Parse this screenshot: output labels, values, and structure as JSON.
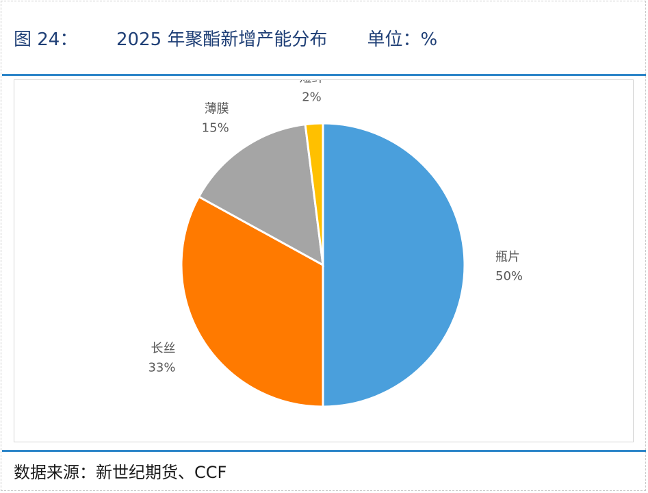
{
  "figure": {
    "number": "图 24：",
    "title": "2025 年聚酯新增产能分布",
    "unit": "单位：%",
    "source": "数据来源：新世纪期货、CCF"
  },
  "chart_data": {
    "type": "pie",
    "title": "",
    "categories": [
      "瓶片",
      "长丝",
      "薄膜",
      "短纤"
    ],
    "values": [
      50,
      33,
      15,
      2
    ],
    "labels": [
      "50%",
      "33%",
      "15%",
      "2%"
    ],
    "colors": [
      "#4a9fdc",
      "#ff7a00",
      "#a5a5a5",
      "#ffc000"
    ],
    "start_angle_deg": 0,
    "direction": "clockwise",
    "legend": "none",
    "data_labels": "category name and percentage, outside"
  }
}
